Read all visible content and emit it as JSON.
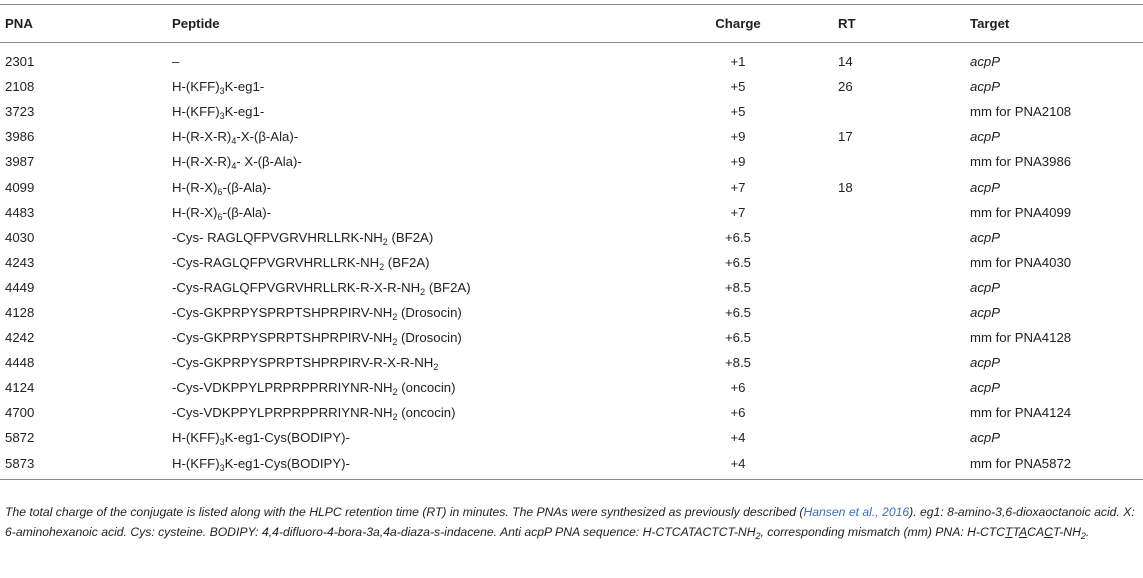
{
  "headers": {
    "pna": "PNA",
    "peptide": "Peptide",
    "charge": "Charge",
    "rt": "RT",
    "target": "Target"
  },
  "rows": [
    {
      "pna": "2301",
      "peptide": [
        {
          "t": "–"
        }
      ],
      "charge": "+1",
      "rt": "14",
      "target": "acpP",
      "italic": true
    },
    {
      "pna": "2108",
      "peptide": [
        {
          "t": "H-(KFF)"
        },
        {
          "s": "3"
        },
        {
          "t": "K-eg1-"
        }
      ],
      "charge": "+5",
      "rt": "26",
      "target": "acpP",
      "italic": true
    },
    {
      "pna": "3723",
      "peptide": [
        {
          "t": "H-(KFF)"
        },
        {
          "s": "3"
        },
        {
          "t": "K-eg1-"
        }
      ],
      "charge": "+5",
      "rt": "",
      "target": "mm for PNA2108",
      "italic": false
    },
    {
      "pna": "3986",
      "peptide": [
        {
          "t": "H-(R-X-R)"
        },
        {
          "s": "4"
        },
        {
          "t": "-X-(β-Ala)-"
        }
      ],
      "charge": "+9",
      "rt": "17",
      "target": "acpP",
      "italic": true
    },
    {
      "pna": "3987",
      "peptide": [
        {
          "t": "H-(R-X-R)"
        },
        {
          "s": "4"
        },
        {
          "t": "- X-(β-Ala)-"
        }
      ],
      "charge": "+9",
      "rt": "",
      "target": "mm for PNA3986",
      "italic": false
    },
    {
      "pna": "4099",
      "peptide": [
        {
          "t": "H-(R-X)"
        },
        {
          "s": "6"
        },
        {
          "t": "-(β-Ala)-"
        }
      ],
      "charge": "+7",
      "rt": "18",
      "target": "acpP",
      "italic": true
    },
    {
      "pna": "4483",
      "peptide": [
        {
          "t": "H-(R-X)"
        },
        {
          "s": "6"
        },
        {
          "t": "-(β-Ala)-"
        }
      ],
      "charge": "+7",
      "rt": "",
      "target": "mm for PNA4099",
      "italic": false
    },
    {
      "pna": "4030",
      "peptide": [
        {
          "t": "-Cys- RAGLQFPVGRVHRLLRK-NH"
        },
        {
          "s": "2"
        },
        {
          "t": " (BF2A)"
        }
      ],
      "charge": "+6.5",
      "rt": "",
      "target": "acpP",
      "italic": true
    },
    {
      "pna": "4243",
      "peptide": [
        {
          "t": "-Cys-RAGLQFPVGRVHRLLRK-NH"
        },
        {
          "s": "2"
        },
        {
          "t": " (BF2A)"
        }
      ],
      "charge": "+6.5",
      "rt": "",
      "target": "mm for PNA4030",
      "italic": false
    },
    {
      "pna": "4449",
      "peptide": [
        {
          "t": "-Cys-RAGLQFPVGRVHRLLRK-R-X-R-NH"
        },
        {
          "s": "2"
        },
        {
          "t": " (BF2A)"
        }
      ],
      "charge": "+8.5",
      "rt": "",
      "target": "acpP",
      "italic": true
    },
    {
      "pna": "4128",
      "peptide": [
        {
          "t": "-Cys-GKPRPYSPRPTSHPRPIRV-NH"
        },
        {
          "s": "2"
        },
        {
          "t": " (Drosocin)"
        }
      ],
      "charge": "+6.5",
      "rt": "",
      "target": "acpP",
      "italic": true
    },
    {
      "pna": "4242",
      "peptide": [
        {
          "t": "-Cys-GKPRPYSPRPTSHPRPIRV-NH"
        },
        {
          "s": "2"
        },
        {
          "t": " (Drosocin)"
        }
      ],
      "charge": "+6.5",
      "rt": "",
      "target": "mm for PNA4128",
      "italic": false
    },
    {
      "pna": "4448",
      "peptide": [
        {
          "t": "-Cys-GKPRPYSPRPTSHPRPIRV-R-X-R-NH"
        },
        {
          "s": "2"
        }
      ],
      "charge": "+8.5",
      "rt": "",
      "target": "acpP",
      "italic": true
    },
    {
      "pna": "4124",
      "peptide": [
        {
          "t": "-Cys-VDKPPYLPRPRPPRRIYNR-NH"
        },
        {
          "s": "2"
        },
        {
          "t": " (oncocin)"
        }
      ],
      "charge": "+6",
      "rt": "",
      "target": "acpP",
      "italic": true
    },
    {
      "pna": "4700",
      "peptide": [
        {
          "t": "-Cys-VDKPPYLPRPRPPRRIYNR-NH"
        },
        {
          "s": "2"
        },
        {
          "t": " (oncocin)"
        }
      ],
      "charge": "+6",
      "rt": "",
      "target": "mm for PNA4124",
      "italic": false
    },
    {
      "pna": "5872",
      "peptide": [
        {
          "t": "H-(KFF)"
        },
        {
          "s": "3"
        },
        {
          "t": "K-eg1-Cys(BODIPY)-"
        }
      ],
      "charge": "+4",
      "rt": "",
      "target": "acpP",
      "italic": true
    },
    {
      "pna": "5873",
      "peptide": [
        {
          "t": "H-(KFF)"
        },
        {
          "s": "3"
        },
        {
          "t": "K-eg1-Cys(BODIPY)-"
        }
      ],
      "charge": "+4",
      "rt": "",
      "target": "mm for PNA5872",
      "italic": false
    }
  ],
  "footnote": [
    {
      "t": "The total charge of the conjugate is listed along with the HLPC retention time (RT) in minutes. The PNAs were synthesized as previously described ("
    },
    {
      "t": "Hansen et al., 2016",
      "c": "cite"
    },
    {
      "t": "). eg1: 8-amino-3,6-dioxaoctanoic acid. X: 6-aminohexanoic acid. Cys: cysteine. BODIPY: 4,4-difluoro-4-bora-3a,4a-diaza-s-indacene. Anti acpP PNA sequence: H-CTCATACTCT-NH"
    },
    {
      "s": "2"
    },
    {
      "t": ", corresponding mismatch (mm) PNA: H-CTC"
    },
    {
      "t": "T",
      "c": "under"
    },
    {
      "t": "T"
    },
    {
      "t": "A",
      "c": "under"
    },
    {
      "t": "CA"
    },
    {
      "t": "C",
      "c": "under"
    },
    {
      "t": "T-NH"
    },
    {
      "s": "2"
    },
    {
      "t": "."
    }
  ]
}
